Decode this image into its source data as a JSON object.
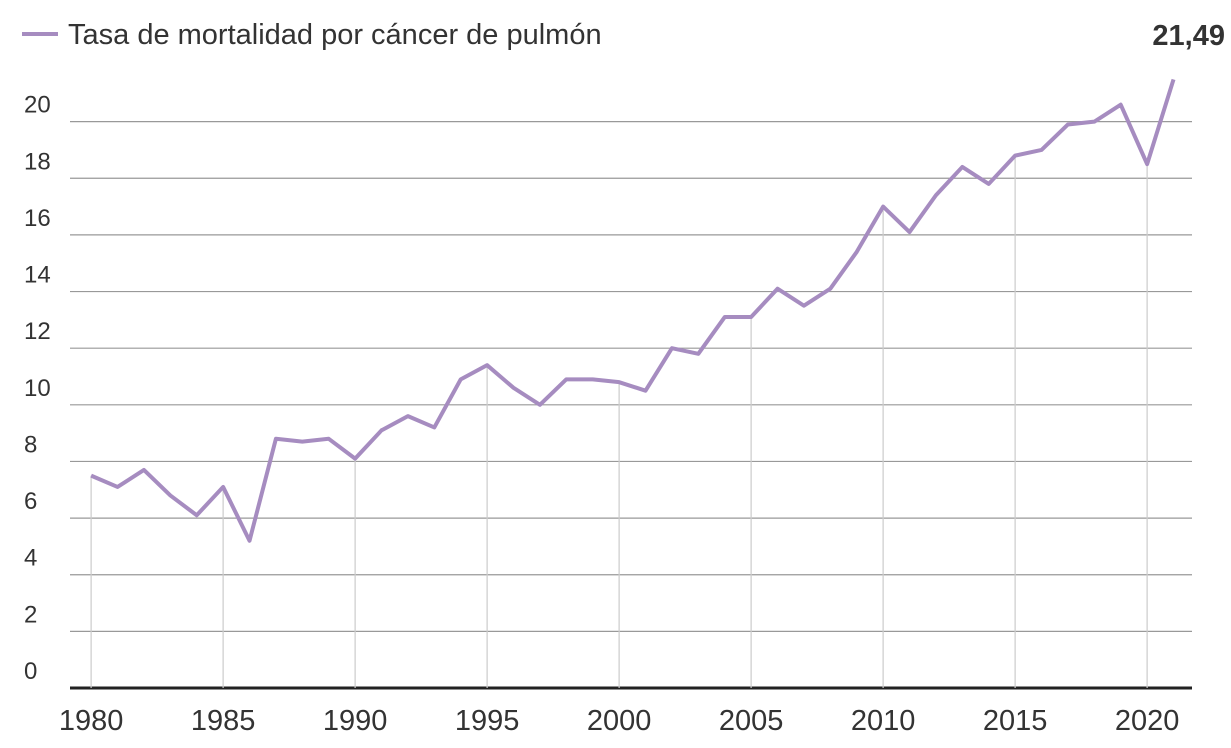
{
  "chart_data": {
    "type": "line",
    "x": [
      1980,
      1981,
      1982,
      1983,
      1984,
      1985,
      1986,
      1987,
      1988,
      1989,
      1990,
      1991,
      1992,
      1993,
      1994,
      1995,
      1996,
      1997,
      1998,
      1999,
      2000,
      2001,
      2002,
      2003,
      2004,
      2005,
      2006,
      2007,
      2008,
      2009,
      2010,
      2011,
      2012,
      2013,
      2014,
      2015,
      2016,
      2017,
      2018,
      2019,
      2020,
      2021
    ],
    "series": [
      {
        "name": "Tasa de mortalidad por cáncer de pulmón",
        "color": "#a68cc0",
        "values": [
          7.5,
          7.1,
          7.7,
          6.8,
          6.1,
          7.1,
          5.2,
          8.8,
          8.7,
          8.8,
          8.1,
          9.1,
          9.6,
          9.2,
          10.9,
          11.4,
          10.6,
          10.0,
          10.9,
          10.9,
          10.8,
          10.5,
          12.0,
          11.8,
          13.1,
          13.1,
          14.1,
          13.5,
          14.1,
          15.4,
          17.0,
          16.1,
          17.4,
          18.4,
          17.8,
          18.8,
          19.0,
          19.9,
          20.0,
          20.6,
          18.5,
          21.49
        ],
        "value_labels": [
          null,
          null,
          null,
          null,
          null,
          null,
          null,
          null,
          null,
          null,
          null,
          null,
          null,
          null,
          null,
          null,
          null,
          null,
          null,
          null,
          null,
          null,
          null,
          null,
          null,
          null,
          null,
          null,
          null,
          null,
          null,
          null,
          null,
          null,
          null,
          null,
          null,
          null,
          null,
          null,
          null,
          "21,49"
        ]
      }
    ],
    "xlim": [
      1979.2,
      2021.7
    ],
    "xticks": [
      1980,
      1985,
      1990,
      1995,
      2000,
      2005,
      2010,
      2015,
      2020
    ],
    "ylim": [
      0,
      22
    ],
    "yticks": [
      0,
      2,
      4,
      6,
      8,
      10,
      12,
      14,
      16,
      18,
      20
    ],
    "grid": true
  }
}
